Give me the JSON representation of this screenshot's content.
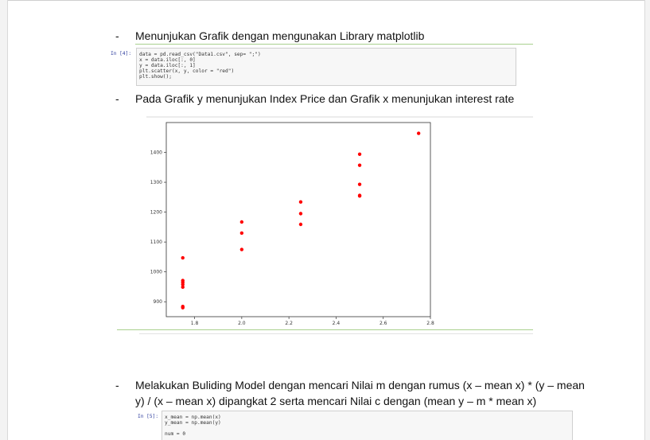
{
  "bullets": [
    {
      "marker": "-",
      "text": "Menunjukan Grafik dengan mengunakan Library matplotlib"
    },
    {
      "marker": "-",
      "text": "Pada Grafik y menunjukan Index Price dan Grafik x menunjukan interest rate"
    },
    {
      "marker": "-",
      "line1": "Melakukan Buliding Model dengan mencari Nilai m dengan rumus (x – mean x) * (y – mean",
      "line2": "y) / (x – mean x) dipangkat 2 serta mencari Nilai c dengan (mean y – m * mean x)"
    }
  ],
  "cell1": {
    "prompt": "In [4]:",
    "lines": [
      "data = pd.read_csv(\"Data1.csv\", sep= \";\")",
      "x = data.iloc[:, 0]",
      "y = data.iloc[:, 1]",
      "plt.scatter(x, y, color = \"red\")",
      "plt.show();"
    ]
  },
  "cell2": {
    "prompt": "In [5]:",
    "lines": [
      "x_mean = np.mean(x)",
      "y_mean = np.mean(y)",
      "",
      "num = 0"
    ]
  },
  "chart_data": {
    "type": "scatter",
    "color": "#ff0000",
    "xlim": [
      1.68,
      2.8
    ],
    "ylim": [
      850,
      1500
    ],
    "x_ticks": [
      "1.8",
      "2.0",
      "2.2",
      "2.4",
      "2.6",
      "2.8"
    ],
    "x_tick_values": [
      1.8,
      2.0,
      2.2,
      2.4,
      2.6,
      2.8
    ],
    "y_ticks": [
      "900",
      "1000",
      "1100",
      "1200",
      "1300",
      "1400"
    ],
    "y_tick_values": [
      900,
      1000,
      1100,
      1200,
      1300,
      1400
    ],
    "x": [
      1.75,
      1.75,
      1.75,
      1.75,
      1.75,
      1.75,
      1.75,
      2.0,
      2.0,
      2.0,
      2.25,
      2.25,
      2.25,
      2.5,
      2.5,
      2.5,
      2.5,
      2.5,
      2.75
    ],
    "y": [
      1047,
      971,
      965,
      958,
      949,
      884,
      880,
      1075,
      1130,
      1167,
      1159,
      1195,
      1234,
      1256,
      1254,
      1293,
      1357,
      1394,
      1464
    ]
  }
}
